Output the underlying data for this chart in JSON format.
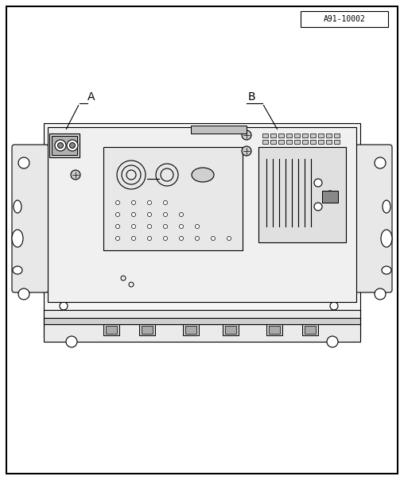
{
  "bg_color": "#ffffff",
  "border_color": "#000000",
  "line_color": "#000000",
  "figure_size": [
    5.08,
    6.04
  ],
  "dpi": 100,
  "label_A": "A",
  "label_B": "B",
  "ref_code": "A91-10002",
  "outer_border_lw": 1.5,
  "inner_lw": 0.8
}
